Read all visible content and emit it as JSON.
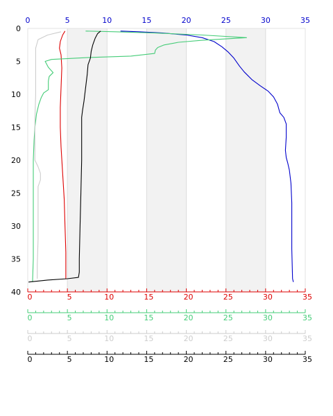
{
  "chart_data": {
    "type": "line",
    "title": "",
    "ylabel": "",
    "ylim": [
      0,
      40
    ],
    "y_inverted": true,
    "y_ticks": [
      0,
      5,
      10,
      15,
      20,
      25,
      30,
      35,
      40
    ],
    "grid": "alternating vertical bands",
    "x_axes": [
      {
        "position": "top",
        "color": "#0000cc",
        "range": [
          0,
          35
        ],
        "ticks": [
          0,
          5,
          10,
          15,
          20,
          25,
          30,
          35
        ]
      },
      {
        "position": "bottom-1",
        "color": "#dd0000",
        "range": [
          0,
          35
        ],
        "ticks": [
          0,
          5,
          10,
          15,
          20,
          25,
          30,
          35
        ]
      },
      {
        "position": "bottom-2",
        "color": "#44cc77",
        "range": [
          0,
          35
        ],
        "ticks": [
          0,
          5,
          10,
          15,
          20,
          25,
          30,
          35
        ]
      },
      {
        "position": "bottom-3",
        "color": "#cccccc",
        "range": [
          0,
          35
        ],
        "ticks": [
          0,
          5,
          10,
          15,
          20,
          25,
          30,
          35
        ]
      },
      {
        "position": "bottom-4",
        "color": "#000000",
        "range": [
          0,
          35
        ],
        "ticks": [
          0,
          5,
          10,
          15,
          20,
          25,
          30,
          35
        ]
      }
    ],
    "series": [
      {
        "axis": 0,
        "color": "#0000cc",
        "points": [
          [
            11.7,
            0.4
          ],
          [
            14,
            0.5
          ],
          [
            17,
            0.7
          ],
          [
            20,
            1.0
          ],
          [
            22,
            1.4
          ],
          [
            23.5,
            2.0
          ],
          [
            24.5,
            2.8
          ],
          [
            25.3,
            3.6
          ],
          [
            26,
            4.5
          ],
          [
            26.7,
            5.7
          ],
          [
            27.3,
            6.6
          ],
          [
            28.3,
            7.8
          ],
          [
            29.3,
            8.7
          ],
          [
            30.3,
            9.5
          ],
          [
            31,
            10.4
          ],
          [
            31.5,
            11.5
          ],
          [
            31.8,
            12.8
          ],
          [
            32.3,
            13.5
          ],
          [
            32.6,
            14.5
          ],
          [
            32.6,
            16.5
          ],
          [
            32.5,
            18.5
          ],
          [
            32.6,
            19.6
          ],
          [
            32.8,
            20.5
          ],
          [
            33,
            21.5
          ],
          [
            33.2,
            23.5
          ],
          [
            33.3,
            26.5
          ],
          [
            33.3,
            33.5
          ],
          [
            33.4,
            38.0
          ],
          [
            33.5,
            38.5
          ]
        ]
      },
      {
        "axis": 1,
        "color": "#dd0000",
        "points": [
          [
            4.7,
            0.4
          ],
          [
            4.4,
            1.0
          ],
          [
            4.1,
            2.0
          ],
          [
            4.0,
            3.0
          ],
          [
            4.2,
            4.0
          ],
          [
            4.3,
            6.0
          ],
          [
            4.2,
            9.0
          ],
          [
            4.1,
            12.0
          ],
          [
            4.1,
            15.0
          ],
          [
            4.2,
            18.0
          ],
          [
            4.4,
            22.0
          ],
          [
            4.6,
            26.0
          ],
          [
            4.7,
            30.0
          ],
          [
            4.8,
            34.0
          ],
          [
            4.8,
            38.0
          ]
        ]
      },
      {
        "axis": 2,
        "color": "#44cc77",
        "points": [
          [
            7.3,
            0.4
          ],
          [
            11,
            0.5
          ],
          [
            16,
            0.7
          ],
          [
            22,
            1.0
          ],
          [
            27.6,
            1.4
          ],
          [
            22,
            1.8
          ],
          [
            19,
            2.1
          ],
          [
            17.2,
            2.5
          ],
          [
            16.4,
            2.9
          ],
          [
            16.1,
            3.3
          ],
          [
            16.0,
            3.8
          ],
          [
            13,
            4.2
          ],
          [
            8,
            4.4
          ],
          [
            3,
            4.7
          ],
          [
            2.2,
            5.0
          ],
          [
            2.6,
            5.9
          ],
          [
            3.2,
            6.7
          ],
          [
            2.7,
            7.3
          ],
          [
            2.6,
            8.0
          ],
          [
            2.6,
            9.3
          ],
          [
            2.0,
            9.8
          ],
          [
            1.7,
            10.5
          ],
          [
            1.4,
            11.5
          ],
          [
            1.1,
            13.0
          ],
          [
            0.9,
            15.0
          ],
          [
            0.8,
            17.0
          ],
          [
            0.7,
            20.0
          ],
          [
            0.7,
            25.0
          ],
          [
            0.7,
            30.0
          ],
          [
            0.7,
            35.0
          ],
          [
            0.6,
            38.5
          ]
        ]
      },
      {
        "axis": 3,
        "color": "#cccccc",
        "points": [
          [
            4.2,
            0.5
          ],
          [
            2.5,
            1.0
          ],
          [
            1.3,
            1.7
          ],
          [
            1.0,
            3.0
          ],
          [
            1.0,
            6.0
          ],
          [
            1.0,
            10.0
          ],
          [
            0.9,
            14.0
          ],
          [
            0.9,
            17.0
          ],
          [
            0.9,
            20.0
          ],
          [
            1.3,
            21.0
          ],
          [
            1.6,
            22.0
          ],
          [
            1.6,
            23.0
          ],
          [
            1.3,
            24.0
          ],
          [
            1.3,
            28.0
          ],
          [
            1.3,
            32.0
          ],
          [
            1.2,
            36.0
          ],
          [
            1.2,
            38.0
          ]
        ]
      },
      {
        "axis": 4,
        "color": "#000000",
        "points": [
          [
            9.2,
            0.4
          ],
          [
            8.8,
            0.8
          ],
          [
            8.5,
            1.5
          ],
          [
            8.2,
            2.5
          ],
          [
            8.0,
            3.5
          ],
          [
            7.9,
            4.5
          ],
          [
            7.6,
            5.5
          ],
          [
            7.5,
            7.0
          ],
          [
            7.3,
            9.0
          ],
          [
            7.1,
            11.0
          ],
          [
            6.9,
            12.5
          ],
          [
            6.8,
            13.5
          ],
          [
            6.8,
            15.0
          ],
          [
            6.8,
            20.0
          ],
          [
            6.7,
            25.0
          ],
          [
            6.6,
            30.0
          ],
          [
            6.5,
            35.0
          ],
          [
            6.5,
            37.0
          ],
          [
            6.4,
            37.8
          ],
          [
            5.0,
            38.0
          ],
          [
            2.5,
            38.2
          ],
          [
            0.1,
            38.5
          ]
        ]
      }
    ]
  }
}
